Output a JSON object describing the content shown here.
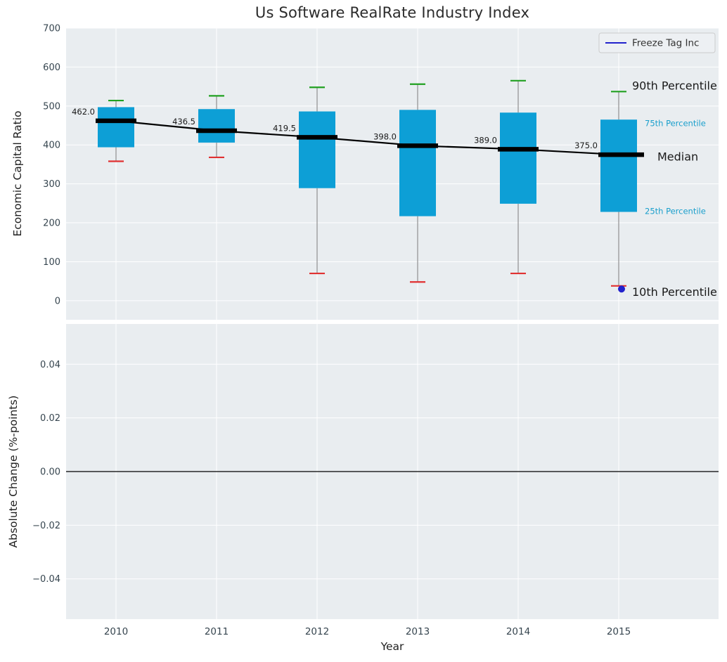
{
  "title": "Us Software RealRate Industry Index",
  "legend": {
    "label": "Freeze Tag Inc"
  },
  "colors": {
    "box_fill": "#0D9FD6",
    "cap_high": "#21A121",
    "cap_low": "#E03131",
    "median": "#000000",
    "whisker": "#8f8f8f",
    "player": "#2222CC",
    "percentile_text": "#1A9FCC",
    "annotation_text": "#1a1a1a",
    "tick_text": "#36454F",
    "plot_bg": "#E9EDF0",
    "grid": "#FFFFFF",
    "legend_bg": "#EDF0F3",
    "legend_border": "#cccccc"
  },
  "chart_data": [
    {
      "type": "boxplot",
      "ylabel": "Economic Capital Ratio",
      "ylim": [
        0,
        700
      ],
      "yticks": [
        0,
        100,
        200,
        300,
        400,
        500,
        600,
        700
      ],
      "ytick_labels": [
        "0",
        "100",
        "200",
        "300",
        "400",
        "500",
        "600",
        "700"
      ],
      "categories": [
        "2010",
        "2011",
        "2012",
        "2013",
        "2014",
        "2015"
      ],
      "boxes": [
        {
          "year": "2010",
          "p10": 358,
          "p25": 394,
          "median": 462.0,
          "p75": 497,
          "p90": 514,
          "label": "462.0"
        },
        {
          "year": "2011",
          "p10": 368,
          "p25": 406,
          "median": 436.5,
          "p75": 492,
          "p90": 526,
          "label": "436.5"
        },
        {
          "year": "2012",
          "p10": 70,
          "p25": 289,
          "median": 419.5,
          "p75": 486,
          "p90": 548,
          "label": "419.5"
        },
        {
          "year": "2013",
          "p10": 48,
          "p25": 217,
          "median": 398.0,
          "p75": 490,
          "p90": 556,
          "label": "398.0"
        },
        {
          "year": "2014",
          "p10": 70,
          "p25": 249,
          "median": 389.0,
          "p75": 483,
          "p90": 565,
          "label": "389.0"
        },
        {
          "year": "2015",
          "p10": 38,
          "p25": 228,
          "median": 375.0,
          "p75": 465,
          "p90": 537,
          "label": "375.0"
        }
      ],
      "median_line": [
        462.0,
        436.5,
        419.5,
        398.0,
        389.0,
        375.0
      ],
      "player_point": {
        "year": "2015",
        "value": 30
      },
      "annotations": [
        {
          "label": "90th Percentile",
          "value": 552,
          "style": "large",
          "dx": 19
        },
        {
          "label": "75th Percentile",
          "value": 455,
          "style": "small",
          "dx": 37
        },
        {
          "label": "Median",
          "value": 370,
          "style": "large",
          "dx": 55
        },
        {
          "label": "25th Percentile",
          "value": 230,
          "style": "small",
          "dx": 37
        },
        {
          "label": "10th Percentile",
          "value": 22,
          "style": "large",
          "dx": 19
        }
      ],
      "legend_position": "upper right",
      "grid": true
    },
    {
      "type": "line",
      "ylabel": "Absolute Change (%-points)",
      "xlabel": "Year",
      "ylim": [
        -0.055,
        0.055
      ],
      "yticks": [
        -0.04,
        -0.02,
        0.0,
        0.02,
        0.04
      ],
      "ytick_labels": [
        "−0.04",
        "−0.02",
        "0.00",
        "0.02",
        "0.04"
      ],
      "categories": [
        "2010",
        "2011",
        "2012",
        "2013",
        "2014",
        "2015"
      ],
      "zero_line": 0.0,
      "series": [],
      "grid": true
    }
  ]
}
